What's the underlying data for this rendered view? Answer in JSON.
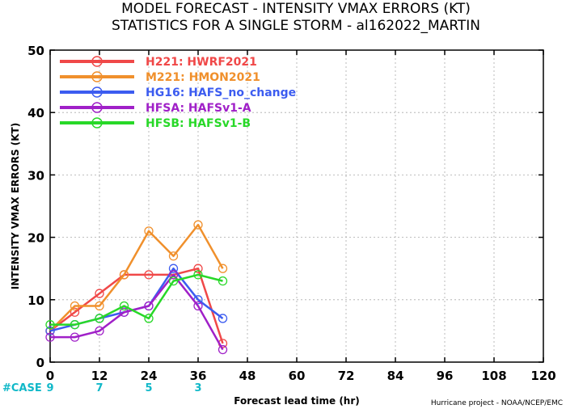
{
  "title_line1": "MODEL FORECAST - INTENSITY VMAX ERRORS (KT)",
  "title_line2": "STATISTICS FOR A SINGLE STORM - al162022_MARTIN",
  "credit": "Hurricane project - NOAA/NCEP/EMC",
  "case_label": "#CASE",
  "chart_data": {
    "type": "line",
    "xlabel": "Forecast lead time (hr)",
    "ylabel": "INTENSITY VMAX ERRORS (KT)",
    "xlim": [
      0,
      120
    ],
    "ylim": [
      0,
      50
    ],
    "xticks": [
      0,
      12,
      24,
      36,
      48,
      60,
      72,
      84,
      96,
      108,
      120
    ],
    "yticks": [
      0,
      10,
      20,
      30,
      40,
      50
    ],
    "grid": true,
    "legend_position": "top-left",
    "cases": [
      {
        "x": 0,
        "n": "9"
      },
      {
        "x": 12,
        "n": "7"
      },
      {
        "x": 24,
        "n": "5"
      },
      {
        "x": 36,
        "n": "3"
      }
    ],
    "series": [
      {
        "name": "H221: HWRF2021",
        "color": "#f04848",
        "x": [
          0,
          6,
          12,
          18,
          24,
          30,
          36,
          42
        ],
        "values": [
          5,
          8,
          11,
          14,
          14,
          14,
          15,
          3
        ]
      },
      {
        "name": "M221: HMON2021",
        "color": "#f0902c",
        "x": [
          0,
          6,
          12,
          18,
          24,
          30,
          36,
          42
        ],
        "values": [
          5,
          9,
          9,
          14,
          21,
          17,
          22,
          15
        ]
      },
      {
        "name": "HG16: HAFS_no_change",
        "color": "#3c5cf0",
        "x": [
          0,
          6,
          12,
          18,
          24,
          30,
          36,
          42
        ],
        "values": [
          5,
          6,
          7,
          8,
          9,
          15,
          10,
          7
        ]
      },
      {
        "name": "HFSA: HAFSv1-A",
        "color": "#a020c8",
        "x": [
          0,
          6,
          12,
          18,
          24,
          30,
          36,
          42
        ],
        "values": [
          4,
          4,
          5,
          8,
          9,
          14,
          9,
          2
        ]
      },
      {
        "name": "HFSB: HAFSv1-B",
        "color": "#28d828",
        "x": [
          0,
          6,
          12,
          18,
          24,
          30,
          36,
          42
        ],
        "values": [
          6,
          6,
          7,
          9,
          7,
          13,
          14,
          13
        ]
      }
    ]
  }
}
